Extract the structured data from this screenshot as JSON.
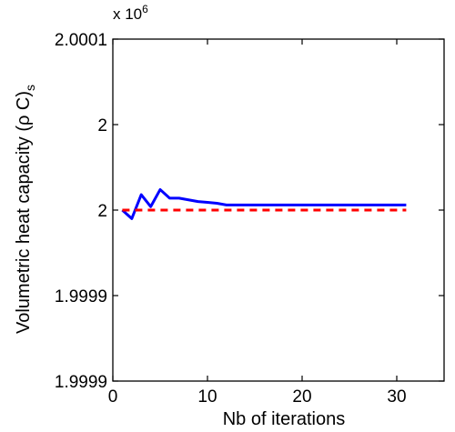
{
  "chart_data": {
    "type": "line",
    "xlabel": "Nb of iterations",
    "ylabel_main": "Volumetric heat capacity (ρ C)",
    "ylabel_subscript": "s",
    "y_multiplier_base": "x 10",
    "y_multiplier_exponent": "6",
    "xlim": [
      0,
      35
    ],
    "ylim": [
      1.99985,
      2.00005
    ],
    "x_ticks": [
      {
        "value": 0,
        "label": "0"
      },
      {
        "value": 10,
        "label": "10"
      },
      {
        "value": 20,
        "label": "20"
      },
      {
        "value": 30,
        "label": "30"
      }
    ],
    "y_ticks": [
      {
        "value": 1.99985,
        "label": "1.9999"
      },
      {
        "value": 1.9999,
        "label": "1.9999"
      },
      {
        "value": 1.99995,
        "label": "2"
      },
      {
        "value": 2.0,
        "label": "2"
      },
      {
        "value": 2.00005,
        "label": "2.0001"
      }
    ],
    "grid": false,
    "series": [
      {
        "color": "#0000ff",
        "style": "solid",
        "x": [
          1,
          2,
          3,
          4,
          5,
          6,
          7,
          8,
          9,
          10,
          11,
          12,
          13,
          14,
          15,
          16,
          17,
          18,
          19,
          20,
          21,
          22,
          23,
          24,
          25,
          26,
          27,
          28,
          29,
          30,
          31
        ],
        "y": [
          1.99995,
          1.999945,
          1.999959,
          1.999952,
          1.999962,
          1.999957,
          1.999957,
          1.999956,
          1.999955,
          1.9999545,
          1.999954,
          1.999953,
          1.999953,
          1.999953,
          1.999953,
          1.999953,
          1.999953,
          1.999953,
          1.999953,
          1.999953,
          1.999953,
          1.999953,
          1.999953,
          1.999953,
          1.999953,
          1.999953,
          1.999953,
          1.999953,
          1.999953,
          1.999953,
          1.999953
        ]
      },
      {
        "color": "#ff0000",
        "style": "dashed",
        "x": [
          1,
          31
        ],
        "y": [
          1.99995,
          1.99995
        ]
      }
    ]
  }
}
